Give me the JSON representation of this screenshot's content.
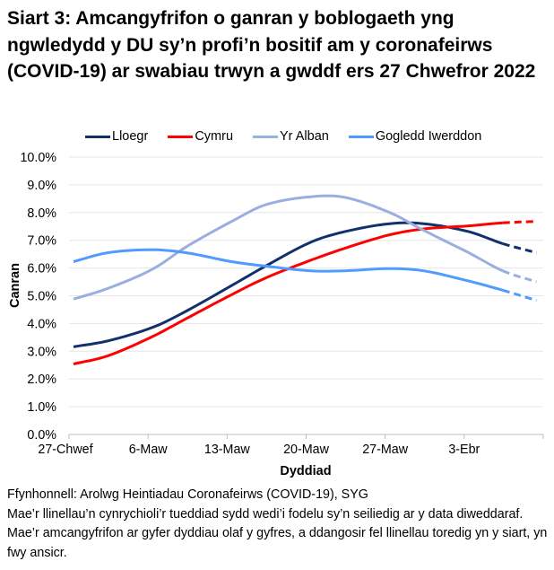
{
  "title": "Siart 3: Amcangyfrifon o ganran y boblogaeth yng ngwledydd y DU sy’n profi’n bositif am y coronafeirws (COVID-19) ar swabiau trwyn a gwddf ers 27 Chwefror 2022",
  "footer": {
    "source": "Ffynhonnell: Arolwg Heintiadau Coronafeirws (COVID-19), SYG",
    "note": "Mae’r llinellau’n cynrychioli’r tueddiad sydd wedi’i fodelu sy’n seiliedig ar y data diweddaraf. Mae’r amcangyfrifon ar gyfer dyddiau olaf y gyfres, a ddangosir fel llinellau toredig yn y siart, yn fwy ansicr."
  },
  "chart_data": {
    "type": "line",
    "title": "Siart 3: Amcangyfrifon o ganran y boblogaeth yng ngwledydd y DU sy’n profi’n bositif am y coronafeirws (COVID-19) ar swabiau trwyn a gwddf ers 27 Chwefror 2022",
    "xlabel": "Dyddiad",
    "ylabel": "Canran",
    "ylim": [
      0,
      10
    ],
    "yticks": [
      "0.0%",
      "1.0%",
      "2.0%",
      "3.0%",
      "4.0%",
      "5.0%",
      "6.0%",
      "7.0%",
      "8.0%",
      "9.0%",
      "10.0%"
    ],
    "xticks": [
      "27-Chwef",
      "6-Maw",
      "13-Maw",
      "20-Maw",
      "27-Maw",
      "3-Ebr"
    ],
    "grid": true,
    "legend": "top",
    "projection_start": "2022-04-06",
    "x": [
      "2022-02-27",
      "2022-03-02",
      "2022-03-06",
      "2022-03-09",
      "2022-03-13",
      "2022-03-16",
      "2022-03-20",
      "2022-03-23",
      "2022-03-27",
      "2022-03-30",
      "2022-04-03",
      "2022-04-06",
      "2022-04-09"
    ],
    "series": [
      {
        "name": "Lloegr",
        "color": "#12306b",
        "values": [
          3.16,
          3.37,
          3.86,
          4.45,
          5.37,
          6.07,
          6.93,
          7.31,
          7.6,
          7.6,
          7.31,
          6.88,
          6.55
        ]
      },
      {
        "name": "Cymru",
        "color": "#ff0000",
        "values": [
          2.54,
          2.83,
          3.53,
          4.18,
          5.04,
          5.64,
          6.28,
          6.71,
          7.2,
          7.41,
          7.52,
          7.63,
          7.68
        ]
      },
      {
        "name": "Yr Alban",
        "color": "#9aaee0",
        "values": [
          4.88,
          5.26,
          5.96,
          6.77,
          7.68,
          8.28,
          8.57,
          8.55,
          8.0,
          7.36,
          6.55,
          5.9,
          5.5
        ]
      },
      {
        "name": "Gogledd Iwerddon",
        "color": "#4f9bff",
        "values": [
          6.23,
          6.55,
          6.66,
          6.55,
          6.23,
          6.07,
          5.9,
          5.9,
          5.98,
          5.9,
          5.53,
          5.2,
          4.83
        ]
      }
    ]
  }
}
